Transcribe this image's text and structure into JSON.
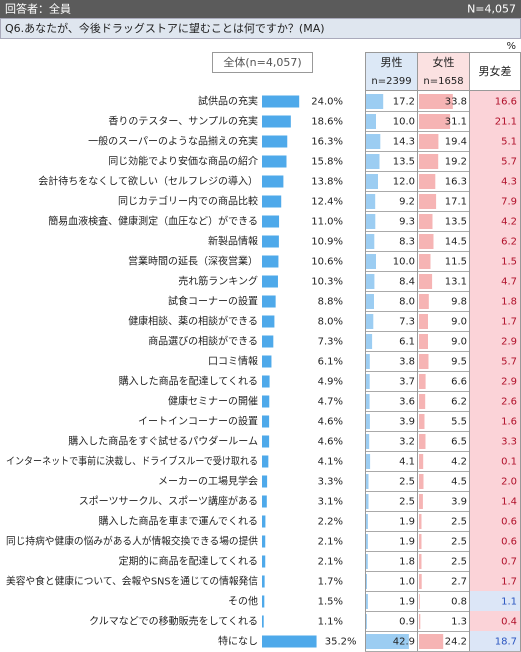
{
  "header": {
    "respondents": "回答者：全員",
    "n": "N=4,057"
  },
  "question": "Q6.あなたが、今後ドラッグストアに望むことは何ですか？(MA)",
  "unit": "%",
  "total_label": "全体(n=4,057)",
  "columns": {
    "male": "男性",
    "male_n": "n=2399",
    "female": "女性",
    "female_n": "n=1658",
    "diff": "男女差"
  },
  "rows": [
    {
      "label": "試供品の充実",
      "total": "24.0%",
      "male": "17.2",
      "female": "33.8",
      "diff": "16.6"
    },
    {
      "label": "香りのテスター、サンプルの充実",
      "total": "18.6%",
      "male": "10.0",
      "female": "31.1",
      "diff": "21.1"
    },
    {
      "label": "一般のスーパーのような品揃えの充実",
      "total": "16.3%",
      "male": "14.3",
      "female": "19.4",
      "diff": "5.1"
    },
    {
      "label": "同じ効能でより安価な商品の紹介",
      "total": "15.8%",
      "male": "13.5",
      "female": "19.2",
      "diff": "5.7"
    },
    {
      "label": "会計待ちをなくして欲しい（セルフレジの導入）",
      "total": "13.8%",
      "male": "12.0",
      "female": "16.3",
      "diff": "4.3"
    },
    {
      "label": "同じカテゴリー内での商品比較",
      "total": "12.4%",
      "male": "9.2",
      "female": "17.1",
      "diff": "7.9"
    },
    {
      "label": "簡易血液検査、健康測定（血圧など）ができる",
      "total": "11.0%",
      "male": "9.3",
      "female": "13.5",
      "diff": "4.2"
    },
    {
      "label": "新製品情報",
      "total": "10.9%",
      "male": "8.3",
      "female": "14.5",
      "diff": "6.2"
    },
    {
      "label": "営業時間の延長（深夜営業）",
      "total": "10.6%",
      "male": "10.0",
      "female": "11.5",
      "diff": "1.5"
    },
    {
      "label": "売れ筋ランキング",
      "total": "10.3%",
      "male": "8.4",
      "female": "13.1",
      "diff": "4.7"
    },
    {
      "label": "試食コーナーの設置",
      "total": "8.8%",
      "male": "8.0",
      "female": "9.8",
      "diff": "1.8"
    },
    {
      "label": "健康相談、薬の相談ができる",
      "total": "8.0%",
      "male": "7.3",
      "female": "9.0",
      "diff": "1.7"
    },
    {
      "label": "商品選びの相談ができる",
      "total": "7.3%",
      "male": "6.1",
      "female": "9.0",
      "diff": "2.9"
    },
    {
      "label": "口コミ情報",
      "total": "6.1%",
      "male": "3.8",
      "female": "9.5",
      "diff": "5.7"
    },
    {
      "label": "購入した商品を配達してくれる",
      "total": "4.9%",
      "male": "3.7",
      "female": "6.6",
      "diff": "2.9"
    },
    {
      "label": "健康セミナーの開催",
      "total": "4.7%",
      "male": "3.6",
      "female": "6.2",
      "diff": "2.6"
    },
    {
      "label": "イートインコーナーの設置",
      "total": "4.6%",
      "male": "3.9",
      "female": "5.5",
      "diff": "1.6"
    },
    {
      "label": "購入した商品をすぐ試せるパウダールーム",
      "total": "4.6%",
      "male": "3.2",
      "female": "6.5",
      "diff": "3.3"
    },
    {
      "label": "インターネットで事前に決裁し、ドライブスルーで受け取れる",
      "total": "4.1%",
      "male": "4.1",
      "female": "4.2",
      "diff": "0.1"
    },
    {
      "label": "メーカーの工場見学会",
      "total": "3.3%",
      "male": "2.5",
      "female": "4.5",
      "diff": "2.0"
    },
    {
      "label": "スポーツサークル、スポーツ講座がある",
      "total": "3.1%",
      "male": "2.5",
      "female": "3.9",
      "diff": "1.4"
    },
    {
      "label": "購入した商品を車まで運んでくれる",
      "total": "2.2%",
      "male": "1.9",
      "female": "2.5",
      "diff": "0.6"
    },
    {
      "label": "同じ持病や健康の悩みがある人が情報交換できる場の提供",
      "total": "2.1%",
      "male": "1.9",
      "female": "2.5",
      "diff": "0.6"
    },
    {
      "label": "定期的に商品を配達してくれる",
      "total": "2.1%",
      "male": "1.8",
      "female": "2.5",
      "diff": "0.7"
    },
    {
      "label": "美容や食と健康について、会報やSNSを通じての情報発信",
      "total": "1.7%",
      "male": "1.0",
      "female": "2.7",
      "diff": "1.7"
    },
    {
      "label": "その他",
      "total": "1.5%",
      "male": "1.9",
      "female": "0.8",
      "diff": "1.1"
    },
    {
      "label": "クルマなどでの移動販売をしてくれる",
      "total": "1.1%",
      "male": "0.9",
      "female": "1.3",
      "diff": "0.4"
    },
    {
      "label": "特になし",
      "total": "35.2%",
      "male": "42.9",
      "female": "24.2",
      "diff": "18.7"
    }
  ]
}
